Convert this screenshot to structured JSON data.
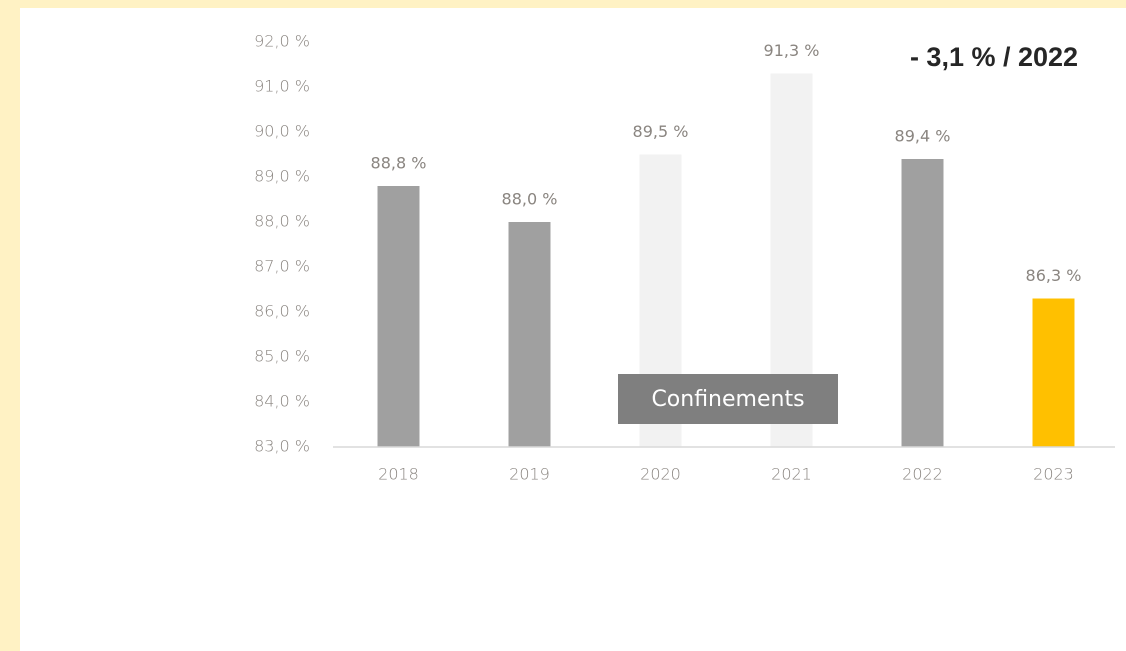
{
  "chart_data": {
    "type": "bar",
    "categories": [
      "2018",
      "2019",
      "2020",
      "2021",
      "2022",
      "2023"
    ],
    "values": [
      88.8,
      88.0,
      89.5,
      91.3,
      89.4,
      86.3
    ],
    "value_labels": [
      "88,8 %",
      "88,0 %",
      "89,5 %",
      "91,3 %",
      "89,4 %",
      "86,3 %"
    ],
    "colors": [
      "#a0a0a0",
      "#a0a0a0",
      "#f2f2f2",
      "#f2f2f2",
      "#a0a0a0",
      "#ffc000"
    ],
    "ylim": [
      83,
      92
    ],
    "yticks": [
      {
        "value": 83,
        "label": "83,0 %"
      },
      {
        "value": 84,
        "label": "84,0 %"
      },
      {
        "value": 85,
        "label": "85,0 %"
      },
      {
        "value": 86,
        "label": "86,0 %"
      },
      {
        "value": 87,
        "label": "87,0 %"
      },
      {
        "value": 88,
        "label": "88,0 %"
      },
      {
        "value": 89,
        "label": "89,0 %"
      },
      {
        "value": 90,
        "label": "90,0 %"
      },
      {
        "value": 91,
        "label": "91,0 %"
      },
      {
        "value": 92,
        "label": "92,0 %"
      }
    ],
    "annotations": [
      "- 3,1 % / 2022",
      "Confinements"
    ]
  }
}
